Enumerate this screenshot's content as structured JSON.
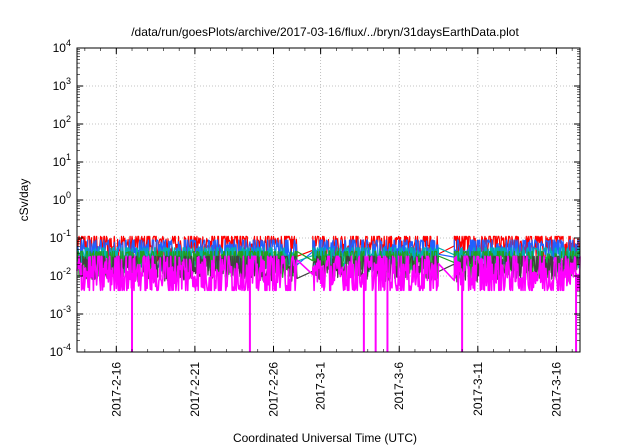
{
  "chart_data": {
    "type": "line",
    "title": "/data/run/goesPlots/archive/2017-03-16/flux/../bryn/31daysEarthData.plot",
    "xlabel": "Coordinated Universal Time (UTC)",
    "ylabel": "cSv/day",
    "yscale": "log",
    "ylim": [
      0.0001,
      10000
    ],
    "xlim": [
      "2017-02-13T12:00",
      "2017-03-17T12:00"
    ],
    "grid": true,
    "legend": "none",
    "x_ticks": [
      "2017-2-16",
      "2017-2-21",
      "2017-2-26",
      "2017-3-1",
      "2017-3-6",
      "2017-3-11",
      "2017-3-16"
    ],
    "y_ticks": [
      {
        "base": "10",
        "exp": "-4"
      },
      {
        "base": "10",
        "exp": "-3"
      },
      {
        "base": "10",
        "exp": "-2"
      },
      {
        "base": "10",
        "exp": "-1"
      },
      {
        "base": "10",
        "exp": "0"
      },
      {
        "base": "10",
        "exp": "1"
      },
      {
        "base": "10",
        "exp": "2"
      },
      {
        "base": "10",
        "exp": "3"
      },
      {
        "base": "10",
        "exp": "4"
      }
    ],
    "data_gaps": [
      [
        "2017-02-27T12:00",
        "2017-02-28T12:00"
      ],
      [
        "2017-03-08T12:00",
        "2017-03-09T12:00"
      ]
    ],
    "series": [
      {
        "color": "#ff0000",
        "typical": 0.07,
        "peak": 0.1
      },
      {
        "color": "#2060ff",
        "typical": 0.05,
        "peak": 0.08
      },
      {
        "color": "#00b0b0",
        "typical": 0.035,
        "peak": 0.05
      },
      {
        "color": "#20a020",
        "typical": 0.025,
        "peak": 0.04
      },
      {
        "color": "#404040",
        "typical": 0.02,
        "peak": 0.03
      },
      {
        "color": "#ff00ff",
        "typical": 0.012,
        "peak": 0.03,
        "dips": [
          "2017-02-17T00:00",
          "2017-02-24T12:00",
          "2017-03-03T18:00",
          "2017-03-04T12:00",
          "2017-03-05T06:00",
          "2017-03-10T00:00",
          "2017-03-17T06:00"
        ]
      }
    ]
  }
}
